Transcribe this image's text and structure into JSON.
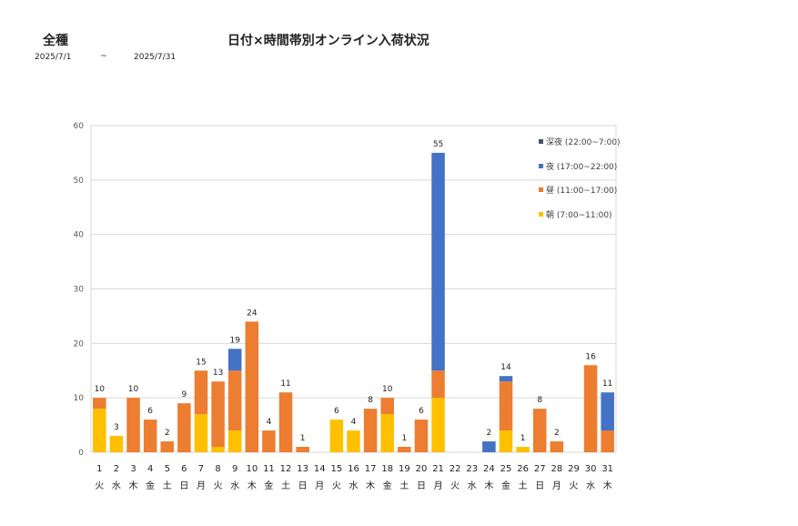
{
  "header": {
    "category": "全種",
    "title": "日付×時間帯別オンライン入荷状況",
    "date_from": "2025/7/1",
    "date_sep": "~",
    "date_to": "2025/7/31"
  },
  "chart_data": {
    "type": "bar",
    "stacked": true,
    "ylim": [
      0,
      60
    ],
    "yticks": [
      0,
      10,
      20,
      30,
      40,
      50,
      60
    ],
    "grid": true,
    "legend_position": "top-right",
    "categories": [
      "1",
      "2",
      "3",
      "4",
      "5",
      "6",
      "7",
      "8",
      "9",
      "10",
      "11",
      "12",
      "13",
      "14",
      "15",
      "16",
      "17",
      "18",
      "19",
      "20",
      "21",
      "22",
      "23",
      "24",
      "25",
      "26",
      "27",
      "28",
      "29",
      "30",
      "31"
    ],
    "weekdays": [
      "火",
      "水",
      "木",
      "金",
      "土",
      "日",
      "月",
      "火",
      "水",
      "木",
      "金",
      "土",
      "日",
      "月",
      "火",
      "水",
      "木",
      "金",
      "土",
      "日",
      "月",
      "火",
      "水",
      "木",
      "金",
      "土",
      "日",
      "月",
      "火",
      "水",
      "木"
    ],
    "series": [
      {
        "name": "朝 (7:00~11:00)",
        "color": "#FFC000",
        "values": [
          8,
          3,
          0,
          0,
          0,
          0,
          7,
          1,
          4,
          0,
          0,
          0,
          0,
          0,
          6,
          4,
          0,
          7,
          0,
          0,
          10,
          0,
          0,
          0,
          4,
          1,
          0,
          0,
          0,
          0,
          0
        ]
      },
      {
        "name": "昼 (11:00~17:00)",
        "color": "#ED7D31",
        "values": [
          2,
          0,
          10,
          6,
          2,
          9,
          8,
          12,
          11,
          24,
          4,
          11,
          1,
          0,
          0,
          0,
          8,
          3,
          1,
          6,
          5,
          0,
          0,
          0,
          9,
          0,
          8,
          2,
          0,
          16,
          4
        ]
      },
      {
        "name": "夜 (17:00~22:00)",
        "color": "#4472C4",
        "values": [
          0,
          0,
          0,
          0,
          0,
          0,
          0,
          0,
          4,
          0,
          0,
          0,
          0,
          0,
          0,
          0,
          0,
          0,
          0,
          0,
          40,
          0,
          0,
          2,
          1,
          0,
          0,
          0,
          0,
          0,
          7
        ]
      },
      {
        "name": "深夜 (22:00~7:00)",
        "color": "#44546A",
        "values": [
          0,
          0,
          0,
          0,
          0,
          0,
          0,
          0,
          0,
          0,
          0,
          0,
          0,
          0,
          0,
          0,
          0,
          0,
          0,
          0,
          0,
          0,
          0,
          0,
          0,
          0,
          0,
          0,
          0,
          0,
          0
        ]
      }
    ],
    "totals": [
      10,
      3,
      10,
      6,
      2,
      9,
      15,
      13,
      19,
      24,
      4,
      11,
      1,
      0,
      6,
      4,
      8,
      10,
      1,
      6,
      55,
      0,
      0,
      2,
      14,
      1,
      8,
      2,
      0,
      16,
      11
    ],
    "legend_order": [
      "深夜 (22:00~7:00)",
      "夜 (17:00~22:00)",
      "昼 (11:00~17:00)",
      "朝 (7:00~11:00)"
    ]
  }
}
